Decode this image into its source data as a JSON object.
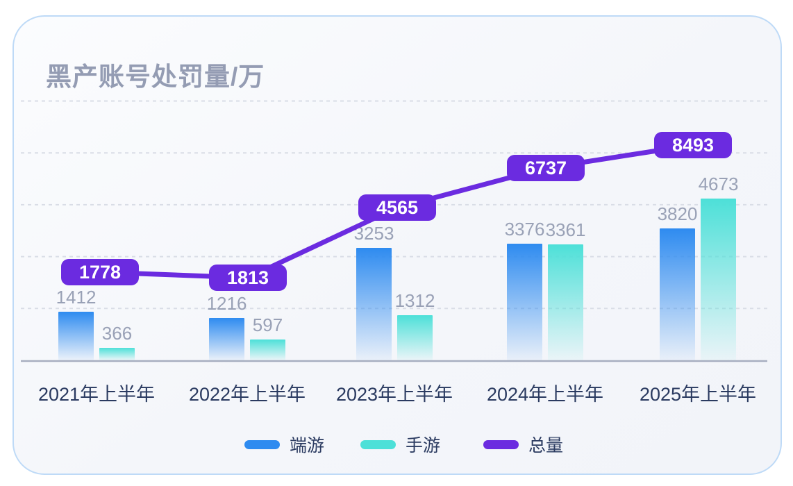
{
  "title": "黑产账号处罚量/万",
  "chart_data": {
    "type": "bar",
    "subtype": "grouped bars with total line overlay",
    "title": "黑产账号处罚量/万",
    "unit": "万",
    "categories": [
      "2021年上半年",
      "2022年上半年",
      "2023年上半年",
      "2024年上半年",
      "2025年上半年"
    ],
    "series": [
      {
        "name": "端游",
        "type": "bar",
        "color": "#2E8BF0",
        "values": [
          1412,
          1216,
          3253,
          3376,
          3820
        ]
      },
      {
        "name": "手游",
        "type": "bar",
        "color": "#4DE0D8",
        "values": [
          366,
          597,
          1312,
          3361,
          4673
        ]
      },
      {
        "name": "总量",
        "type": "line",
        "color": "#6B2BE0",
        "values": [
          1778,
          1813,
          4565,
          6737,
          8493
        ]
      }
    ],
    "ylim": [
      0,
      7500
    ],
    "grid": {
      "step": 1500,
      "style": "dashed",
      "y_axis_labels": false
    },
    "legend_position": "bottom",
    "value_labels": true
  },
  "colors": {
    "card_border": "#BEDAF7",
    "card_background": "#F4F6FA",
    "title_text": "#949CB3",
    "value_label_text": "#99A1B6",
    "axis_label_text": "#2A3A60",
    "axis_line": "#A7AEC0",
    "gridline": "#D9DDE6",
    "badge_background": "#6B2BE0",
    "badge_text": "#FFFFFF"
  }
}
